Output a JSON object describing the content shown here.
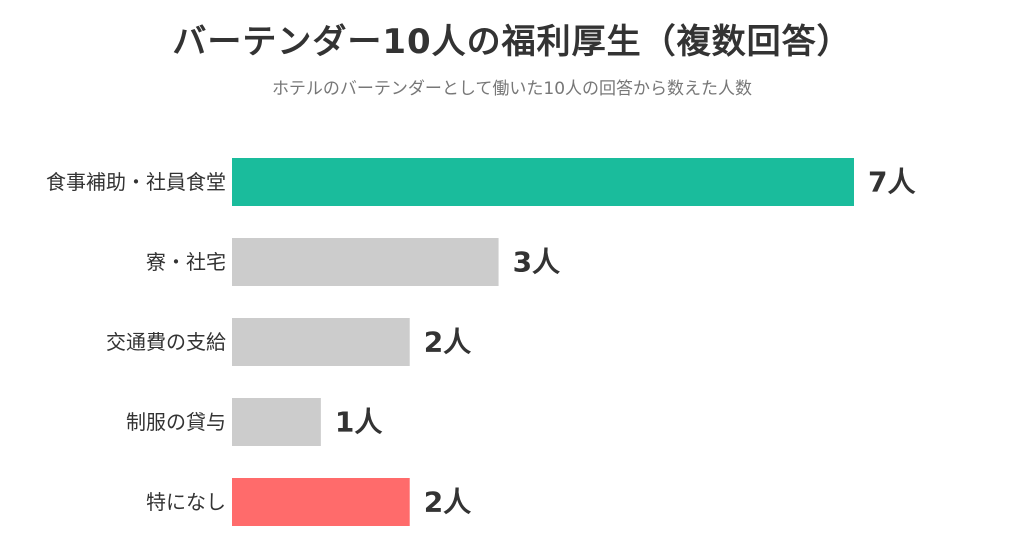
{
  "header": {
    "title": "バーテンダー10人の福利厚生（複数回答）",
    "subtitle": "ホテルのバーテンダーとして働いた10人の回答から数えた人数"
  },
  "chart_data": {
    "type": "bar",
    "orientation": "horizontal",
    "title": "バーテンダー10人の福利厚生（複数回答）",
    "subtitle": "ホテルのバーテンダーとして働いた10人の回答から数えた人数",
    "categories": [
      "食事補助・社員食堂",
      "寮・社宅",
      "交通費の支給",
      "制服の貸与",
      "特になし"
    ],
    "values": [
      7,
      3,
      2,
      1,
      2
    ],
    "value_labels": [
      "7人",
      "3人",
      "2人",
      "1人",
      "2人"
    ],
    "unit": "人",
    "bar_colors": [
      "#1abc9c",
      "#cccccc",
      "#cccccc",
      "#cccccc",
      "#ff6b6b"
    ],
    "xlim": [
      0,
      7
    ],
    "grid": false,
    "legend": "none"
  }
}
